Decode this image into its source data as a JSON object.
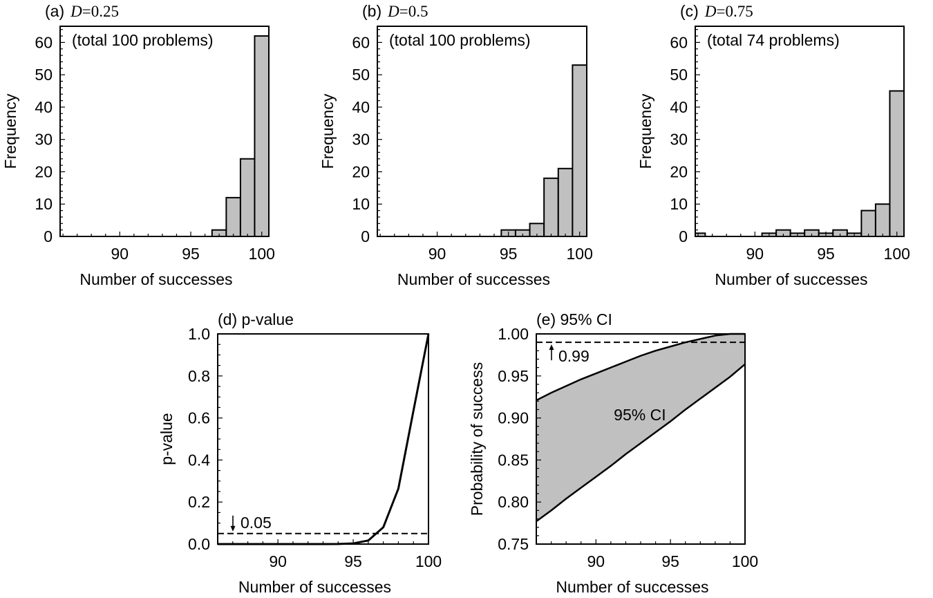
{
  "chart_data": [
    {
      "id": "a",
      "type": "bar",
      "title_prefix": "(a)",
      "title_var": "D",
      "title_eq": "=",
      "title_val": "0.25",
      "annotation": "(total 100 problems)",
      "xlabel": "Number of successes",
      "ylabel": "Frequency",
      "xlim": [
        85.8,
        100.5
      ],
      "ylim": [
        0,
        65
      ],
      "xticks": [
        90,
        95,
        100
      ],
      "yticks": [
        0,
        10,
        20,
        30,
        40,
        50,
        60
      ],
      "bin_width": 1,
      "x": [
        97,
        98,
        99,
        100
      ],
      "values": [
        2,
        12,
        24,
        62
      ]
    },
    {
      "id": "b",
      "type": "bar",
      "title_prefix": "(b)",
      "title_var": "D",
      "title_eq": "=",
      "title_val": "0.5",
      "annotation": "(total 100 problems)",
      "xlabel": "Number of successes",
      "ylabel": "Frequency",
      "xlim": [
        85.8,
        100.5
      ],
      "ylim": [
        0,
        65
      ],
      "xticks": [
        90,
        95,
        100
      ],
      "yticks": [
        0,
        10,
        20,
        30,
        40,
        50,
        60
      ],
      "bin_width": 1,
      "x": [
        95,
        96,
        97,
        98,
        99,
        100
      ],
      "values": [
        2,
        2,
        4,
        18,
        21,
        53
      ]
    },
    {
      "id": "c",
      "type": "bar",
      "title_prefix": "(c)",
      "title_var": "D",
      "title_eq": "=",
      "title_val": "0.75",
      "annotation": "(total 74 problems)",
      "xlabel": "Number of successes",
      "ylabel": "Frequency",
      "xlim": [
        85.8,
        100.5
      ],
      "ylim": [
        0,
        65
      ],
      "xticks": [
        90,
        95,
        100
      ],
      "yticks": [
        0,
        10,
        20,
        30,
        40,
        50,
        60
      ],
      "bin_width": 1,
      "x": [
        86,
        91,
        92,
        93,
        94,
        95,
        96,
        97,
        98,
        99,
        100
      ],
      "values": [
        1,
        1,
        2,
        1,
        2,
        1,
        2,
        1,
        8,
        10,
        45
      ]
    },
    {
      "id": "d",
      "type": "line",
      "title": "(d) p-value",
      "xlabel": "Number of successes",
      "ylabel": "p-value",
      "xlim": [
        86,
        100
      ],
      "ylim": [
        0,
        1.0
      ],
      "xticks": [
        90,
        95,
        100
      ],
      "yticks": [
        "0.0",
        "0.2",
        "0.4",
        "0.6",
        "0.8",
        "1.0"
      ],
      "x": [
        86,
        87,
        88,
        89,
        90,
        91,
        92,
        93,
        94,
        95,
        96,
        97,
        98,
        99,
        100
      ],
      "y": [
        0,
        0,
        0,
        0,
        0,
        0,
        0,
        0,
        0.0005,
        0.003,
        0.017,
        0.08,
        0.264,
        0.634,
        1.0
      ],
      "reference_line": 0.05,
      "reference_label": "0.05"
    },
    {
      "id": "e",
      "type": "area",
      "title": "(e) 95% CI",
      "xlabel": "Number of successes",
      "ylabel": "Probability of success",
      "xlim": [
        86,
        100
      ],
      "ylim": [
        0.75,
        1.0
      ],
      "xticks": [
        90,
        95,
        100
      ],
      "yticks": [
        "0.75",
        "0.80",
        "0.85",
        "0.90",
        "0.95",
        "1.00"
      ],
      "x": [
        86,
        87,
        88,
        89,
        90,
        91,
        92,
        93,
        94,
        95,
        96,
        97,
        98,
        99,
        100
      ],
      "lower": [
        0.777,
        0.79,
        0.804,
        0.817,
        0.83,
        0.843,
        0.857,
        0.87,
        0.883,
        0.896,
        0.91,
        0.923,
        0.936,
        0.949,
        0.964
      ],
      "upper": [
        0.921,
        0.93,
        0.938,
        0.946,
        0.953,
        0.96,
        0.967,
        0.974,
        0.98,
        0.985,
        0.99,
        0.994,
        0.998,
        1.0,
        1.0
      ],
      "reference_line": 0.99,
      "reference_label": "0.99",
      "band_label": "95% CI"
    }
  ]
}
